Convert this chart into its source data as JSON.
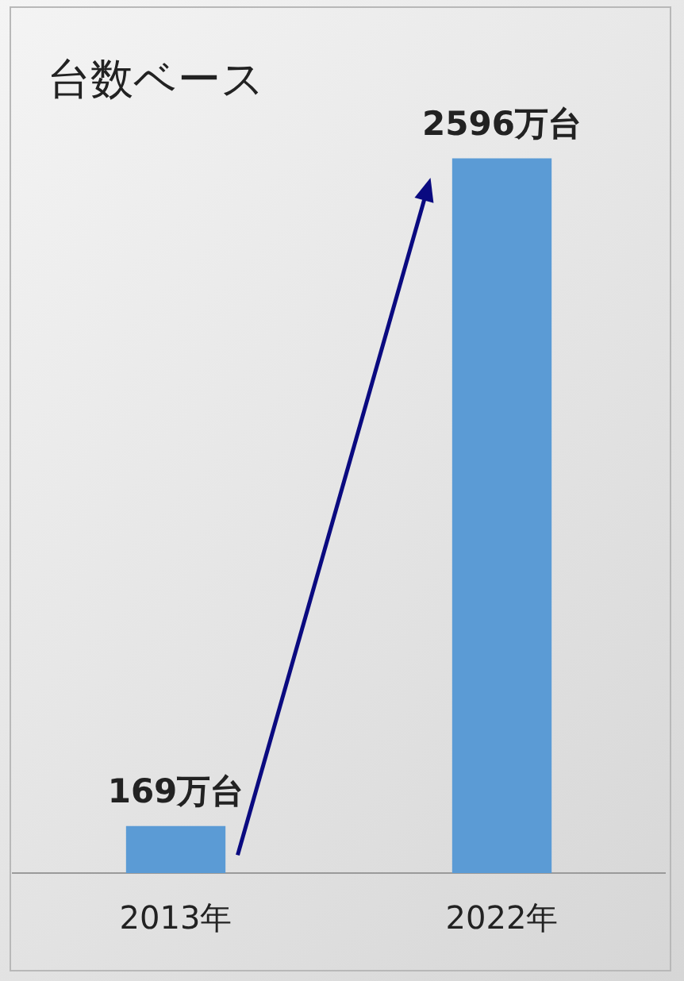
{
  "chart_data": {
    "type": "bar",
    "title": "台数ベース",
    "categories": [
      "2013年",
      "2022年"
    ],
    "values": [
      169,
      2596
    ],
    "color": "#5b9bd5",
    "value_labels": [
      "169万台",
      "2596万台"
    ],
    "grid": false,
    "legend": false
  }
}
